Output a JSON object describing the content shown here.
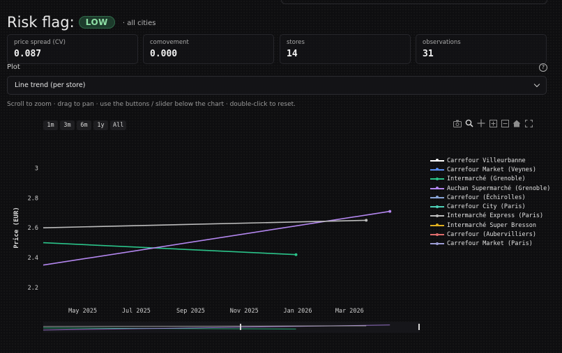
{
  "risk": {
    "title": "Risk flag:",
    "badge": "LOW",
    "scope": "· all cities"
  },
  "metrics": [
    {
      "label": "price spread (CV)",
      "value": "0.087"
    },
    {
      "label": "comovement",
      "value": "0.000"
    },
    {
      "label": "stores",
      "value": "14"
    },
    {
      "label": "observations",
      "value": "31"
    }
  ],
  "plot": {
    "label": "Plot",
    "select_value": "Line trend (per store)",
    "hint": "Scroll to zoom · drag to pan · use the buttons / slider below the chart · double-click to reset."
  },
  "range_buttons": [
    "1m",
    "3m",
    "6m",
    "1y",
    "All"
  ],
  "modebar_icons": [
    "camera-icon",
    "zoom-icon",
    "pan-icon",
    "zoom-in-icon",
    "zoom-out-icon",
    "home-icon",
    "autoscale-icon"
  ],
  "chart_data": {
    "type": "line",
    "ylabel": "Price (EUR)",
    "xlabel": "",
    "ylim": [
      2.12,
      3.1
    ],
    "xlim": [
      "2025-03-17",
      "2026-05-20"
    ],
    "y_ticks": [
      2.2,
      2.4,
      2.6,
      2.8,
      3.0
    ],
    "y_tick_labels": [
      "2.2",
      "2.4",
      "2.6",
      "2.8",
      "3"
    ],
    "x_ticks": [
      "2025-05-01",
      "2025-07-01",
      "2025-09-01",
      "2025-11-01",
      "2026-01-01",
      "2026-03-01"
    ],
    "x_tick_labels": [
      "May 2025",
      "Jul 2025",
      "Sep 2025",
      "Nov 2025",
      "Jan 2026",
      "Mar 2026"
    ],
    "grid": false,
    "legend_position": "right",
    "series": [
      {
        "name": "Carrefour Villeurbanne",
        "color": "#ffffff",
        "x": [],
        "y": []
      },
      {
        "name": "Carrefour Market (Veynes)",
        "color": "#5b8def",
        "x": [],
        "y": []
      },
      {
        "name": "Intermarché (Grenoble)",
        "color": "#2bc48a",
        "x": [
          "2025-03-17",
          "2025-12-30"
        ],
        "y": [
          2.5,
          2.42
        ]
      },
      {
        "name": "Auchan Supermarché (Grenoble)",
        "color": "#b487f0",
        "x": [
          "2025-03-17",
          "2026-04-16"
        ],
        "y": [
          2.35,
          2.71
        ]
      },
      {
        "name": "Carrefour (Échirolles)",
        "color": "#8aa6d8",
        "x": [],
        "y": []
      },
      {
        "name": "Carrefour City (Paris)",
        "color": "#4fd1b8",
        "x": [],
        "y": []
      },
      {
        "name": "Intermarché Express (Paris)",
        "color": "#bdbdbd",
        "x": [
          "2025-03-17",
          "2026-03-20"
        ],
        "y": [
          2.6,
          2.65
        ]
      },
      {
        "name": "Intermarché Super Bresson",
        "color": "#e0b020",
        "x": [],
        "y": []
      },
      {
        "name": "Carrefour (Aubervilliers)",
        "color": "#e06d6d",
        "x": [],
        "y": []
      },
      {
        "name": "Carrefour Market (Paris)",
        "color": "#9c9cd4",
        "x": [],
        "y": []
      }
    ]
  }
}
